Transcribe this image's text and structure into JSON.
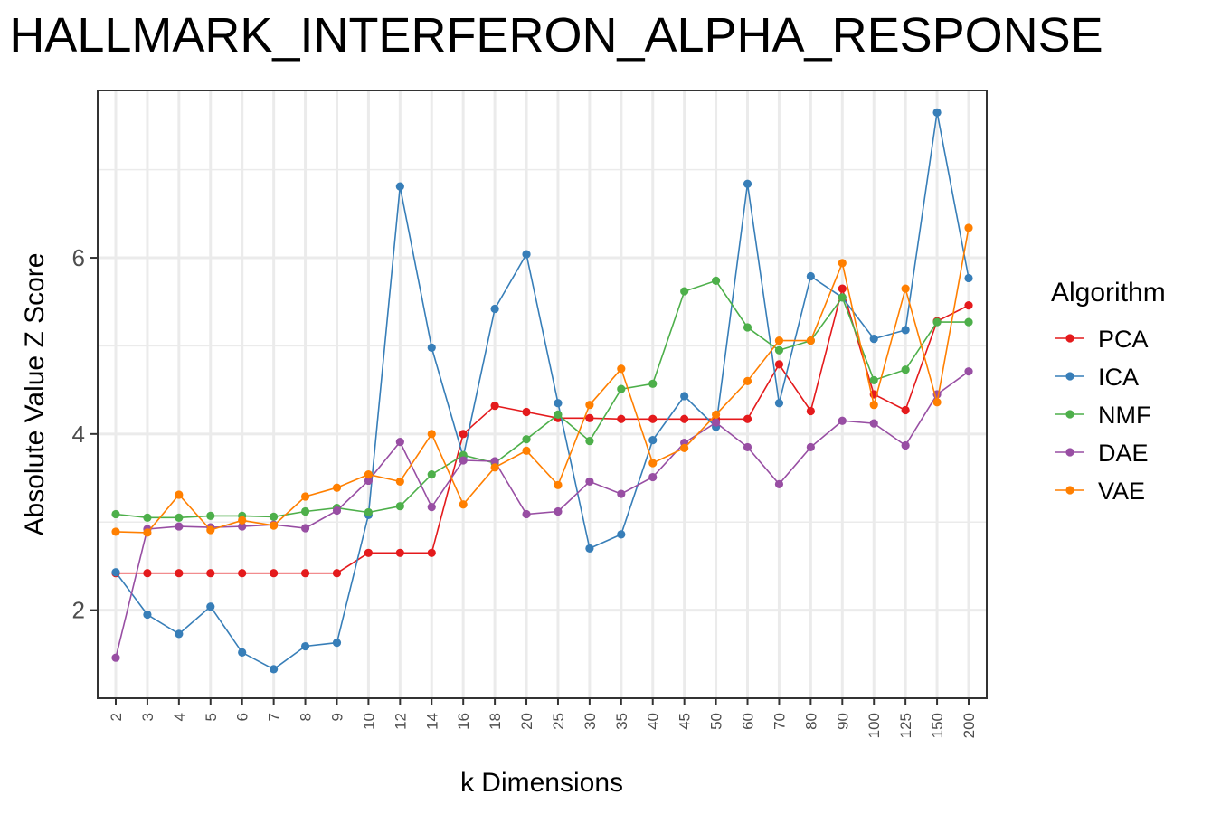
{
  "chart_data": {
    "type": "line",
    "title": "HALLMARK_INTERFERON_ALPHA_RESPONSE",
    "xlabel": "k Dimensions",
    "ylabel": "Absolute Value Z Score",
    "ylim": [
      1.0,
      7.9
    ],
    "yticks": [
      2,
      4,
      6
    ],
    "grid": true,
    "legend_position": "right",
    "legend_title": "Algorithm",
    "categories": [
      "2",
      "3",
      "4",
      "5",
      "6",
      "7",
      "8",
      "9",
      "10",
      "12",
      "14",
      "16",
      "18",
      "20",
      "25",
      "30",
      "35",
      "40",
      "45",
      "50",
      "60",
      "70",
      "80",
      "90",
      "100",
      "125",
      "150",
      "200"
    ],
    "series": [
      {
        "name": "PCA",
        "color": "#e41a1c",
        "values": [
          2.42,
          2.42,
          2.42,
          2.42,
          2.42,
          2.42,
          2.42,
          2.42,
          2.65,
          2.65,
          2.65,
          4.0,
          4.32,
          4.25,
          4.18,
          4.18,
          4.17,
          4.17,
          4.17,
          4.17,
          4.17,
          4.79,
          4.26,
          5.65,
          4.45,
          4.27,
          5.28,
          5.46
        ]
      },
      {
        "name": "ICA",
        "color": "#377eb8",
        "values": [
          2.43,
          1.95,
          1.73,
          2.04,
          1.52,
          1.33,
          1.59,
          1.63,
          3.08,
          6.81,
          4.98,
          3.74,
          5.42,
          6.04,
          4.35,
          2.7,
          2.86,
          3.93,
          4.43,
          4.08,
          6.84,
          4.35,
          5.79,
          5.55,
          5.08,
          5.18,
          7.65,
          5.77
        ]
      },
      {
        "name": "NMF",
        "color": "#4daf4a",
        "values": [
          3.09,
          3.05,
          3.05,
          3.07,
          3.07,
          3.06,
          3.12,
          3.16,
          3.11,
          3.18,
          3.54,
          3.76,
          3.67,
          3.94,
          4.22,
          3.92,
          4.51,
          4.57,
          5.62,
          5.74,
          5.21,
          4.95,
          5.06,
          5.55,
          4.61,
          4.73,
          5.27,
          5.27
        ]
      },
      {
        "name": "DAE",
        "color": "#984ea3",
        "values": [
          1.46,
          2.92,
          2.95,
          2.94,
          2.95,
          2.97,
          2.93,
          3.13,
          3.47,
          3.91,
          3.17,
          3.7,
          3.69,
          3.09,
          3.12,
          3.46,
          3.32,
          3.51,
          3.9,
          4.13,
          3.85,
          3.43,
          3.85,
          4.15,
          4.12,
          3.87,
          4.45,
          4.71
        ]
      },
      {
        "name": "VAE",
        "color": "#ff7f00",
        "values": [
          2.89,
          2.88,
          3.31,
          2.91,
          3.02,
          2.96,
          3.29,
          3.39,
          3.54,
          3.46,
          4.0,
          3.2,
          3.62,
          3.81,
          3.42,
          4.33,
          4.74,
          3.67,
          3.84,
          4.22,
          4.6,
          5.06,
          5.06,
          5.94,
          4.33,
          5.65,
          4.36,
          6.34
        ]
      }
    ]
  }
}
